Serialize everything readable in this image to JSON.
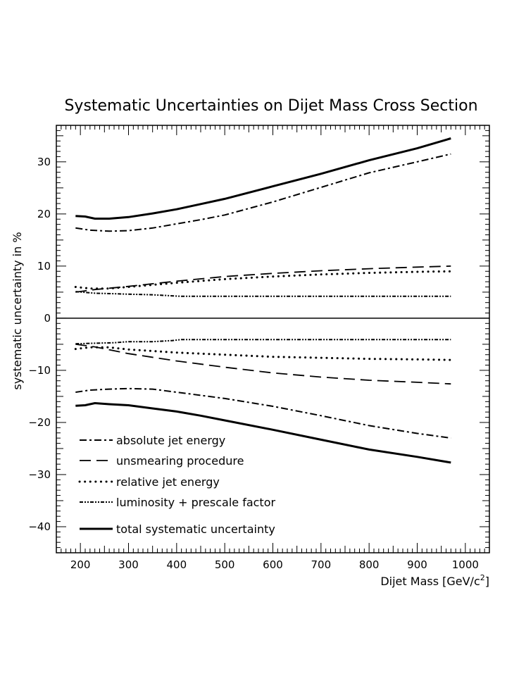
{
  "chart_data": {
    "type": "line",
    "title": "Systematic Uncertainties on Dijet Mass Cross Section",
    "xlabel": "Dijet Mass [GeV/c",
    "xlabel_sup": "2",
    "xlabel_tail": "]",
    "ylabel": "systematic uncertainty in %",
    "xlim": [
      150,
      1050
    ],
    "ylim": [
      -45,
      37
    ],
    "x_ticks": [
      200,
      300,
      400,
      500,
      600,
      700,
      800,
      900,
      1000
    ],
    "y_ticks": [
      -40,
      -30,
      -20,
      -10,
      0,
      10,
      20,
      30
    ],
    "x_tick_labels": [
      "200",
      "300",
      "400",
      "500",
      "600",
      "700",
      "800",
      "900",
      "1000"
    ],
    "y_tick_labels": [
      "−40",
      "−30",
      "−20",
      "−10",
      "0",
      "10",
      "20",
      "30"
    ],
    "grid": false,
    "legend_position": "bottom-left",
    "series": [
      {
        "name": "absolute jet energy",
        "style": "dash-dot",
        "upper": {
          "x": [
            190,
            220,
            260,
            300,
            350,
            400,
            450,
            500,
            600,
            700,
            800,
            900,
            970
          ],
          "y": [
            17.3,
            16.9,
            16.7,
            16.8,
            17.3,
            18.1,
            18.9,
            19.8,
            22.3,
            25.1,
            27.9,
            30.0,
            31.5
          ]
        },
        "lower": {
          "x": [
            190,
            220,
            260,
            300,
            350,
            400,
            450,
            500,
            600,
            700,
            800,
            900,
            970
          ],
          "y": [
            -14.2,
            -13.8,
            -13.6,
            -13.5,
            -13.6,
            -14.2,
            -14.8,
            -15.4,
            -16.9,
            -18.7,
            -20.6,
            -22.1,
            -23.0
          ]
        }
      },
      {
        "name": "unsmearing procedure",
        "style": "dashed",
        "upper": {
          "x": [
            190,
            230,
            300,
            400,
            500,
            600,
            700,
            800,
            900,
            970
          ],
          "y": [
            5.0,
            5.5,
            6.1,
            7.1,
            8.0,
            8.6,
            9.1,
            9.5,
            9.8,
            10.0
          ]
        },
        "lower": {
          "x": [
            190,
            230,
            300,
            400,
            500,
            600,
            700,
            800,
            900,
            970
          ],
          "y": [
            -5.0,
            -5.5,
            -6.8,
            -8.2,
            -9.4,
            -10.5,
            -11.3,
            -11.9,
            -12.3,
            -12.6
          ]
        }
      },
      {
        "name": "relative jet energy",
        "style": "dotted",
        "upper": {
          "x": [
            190,
            220,
            260,
            300,
            400,
            500,
            600,
            700,
            800,
            900,
            970
          ],
          "y": [
            6.0,
            5.7,
            5.7,
            6.0,
            6.8,
            7.5,
            8.0,
            8.4,
            8.7,
            8.9,
            9.0
          ]
        },
        "lower": {
          "x": [
            190,
            220,
            260,
            300,
            400,
            500,
            600,
            700,
            800,
            900,
            970
          ],
          "y": [
            -5.9,
            -5.6,
            -5.6,
            -6.0,
            -6.6,
            -7.0,
            -7.4,
            -7.6,
            -7.8,
            -7.9,
            -8.0
          ]
        }
      },
      {
        "name": "luminosity + prescale factor",
        "style": "dash-dot-dot",
        "upper": {
          "x": [
            190,
            230,
            270,
            300,
            350,
            390,
            410,
            500,
            600,
            700,
            800,
            900,
            970
          ],
          "y": [
            5.1,
            4.8,
            4.7,
            4.6,
            4.5,
            4.3,
            4.2,
            4.2,
            4.2,
            4.2,
            4.2,
            4.2,
            4.2
          ]
        },
        "lower": {
          "x": [
            190,
            230,
            270,
            300,
            350,
            390,
            410,
            500,
            600,
            700,
            800,
            900,
            970
          ],
          "y": [
            -4.9,
            -4.8,
            -4.7,
            -4.5,
            -4.5,
            -4.3,
            -4.1,
            -4.1,
            -4.1,
            -4.1,
            -4.1,
            -4.1,
            -4.1
          ]
        }
      },
      {
        "name": "total systematic uncertainty",
        "style": "solid-thick",
        "upper": {
          "x": [
            190,
            210,
            230,
            260,
            300,
            350,
            400,
            450,
            500,
            600,
            700,
            800,
            900,
            970
          ],
          "y": [
            19.6,
            19.5,
            19.1,
            19.1,
            19.4,
            20.1,
            20.9,
            21.9,
            22.9,
            25.3,
            27.7,
            30.3,
            32.6,
            34.5
          ]
        },
        "lower": {
          "x": [
            190,
            210,
            230,
            260,
            300,
            350,
            400,
            450,
            500,
            600,
            700,
            800,
            900,
            970
          ],
          "y": [
            -16.8,
            -16.7,
            -16.3,
            -16.5,
            -16.7,
            -17.3,
            -17.9,
            -18.7,
            -19.6,
            -21.4,
            -23.3,
            -25.2,
            -26.6,
            -27.7
          ]
        }
      }
    ]
  }
}
